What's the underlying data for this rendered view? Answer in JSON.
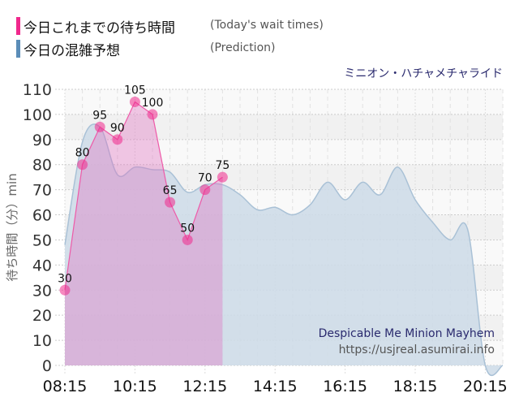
{
  "legend": {
    "today_label": "今日これまでの待ち時間",
    "today_label_en": "(Today's wait times)",
    "prediction_label": "今日の混雑予想",
    "prediction_label_en": "(Prediction)"
  },
  "ride_name": "ミニオン・ハチャメチャライド",
  "y_axis_label": "待ち時間（分）min",
  "watermark": {
    "title": "Despicable Me Minion Mayhem",
    "url": "https://usjreal.asumirai.info"
  },
  "colors": {
    "today": "#f0288c",
    "today_fill": "#f7a8d0",
    "prediction": "#5b8db8",
    "prediction_fill": "#cddbe7",
    "overlap_fill": "#d8b4d8"
  },
  "chart_data": {
    "type": "area",
    "title": "ミニオン・ハチャメチャライド",
    "xlabel": "",
    "ylabel": "待ち時間（分）min",
    "ylim": [
      0,
      110
    ],
    "yticks": [
      0,
      10,
      20,
      30,
      40,
      50,
      60,
      70,
      80,
      90,
      100,
      110
    ],
    "xticks": [
      "08:15",
      "10:15",
      "12:15",
      "14:15",
      "16:15",
      "18:15",
      "20:15"
    ],
    "grid": true,
    "legend_position": "top-left",
    "series": [
      {
        "name": "今日これまでの待ち時間 (Today's wait times)",
        "x": [
          "08:15",
          "08:45",
          "09:15",
          "09:45",
          "10:15",
          "10:45",
          "11:15",
          "11:45",
          "12:15",
          "12:45"
        ],
        "values": [
          30,
          80,
          95,
          90,
          105,
          100,
          65,
          50,
          70,
          75
        ]
      },
      {
        "name": "今日の混雑予想 (Prediction)",
        "x": [
          "08:15",
          "08:45",
          "09:15",
          "09:45",
          "10:15",
          "10:45",
          "11:15",
          "11:45",
          "12:15",
          "12:45",
          "13:15",
          "13:45",
          "14:15",
          "14:45",
          "15:15",
          "15:45",
          "16:15",
          "16:45",
          "17:15",
          "17:45",
          "18:15",
          "18:45",
          "19:15",
          "19:45",
          "20:15",
          "20:45"
        ],
        "values": [
          48,
          89,
          95,
          76,
          79,
          78,
          77,
          69,
          72,
          72,
          68,
          62,
          63,
          60,
          64,
          73,
          66,
          73,
          68,
          79,
          66,
          57,
          50,
          54,
          0,
          0
        ]
      }
    ]
  }
}
